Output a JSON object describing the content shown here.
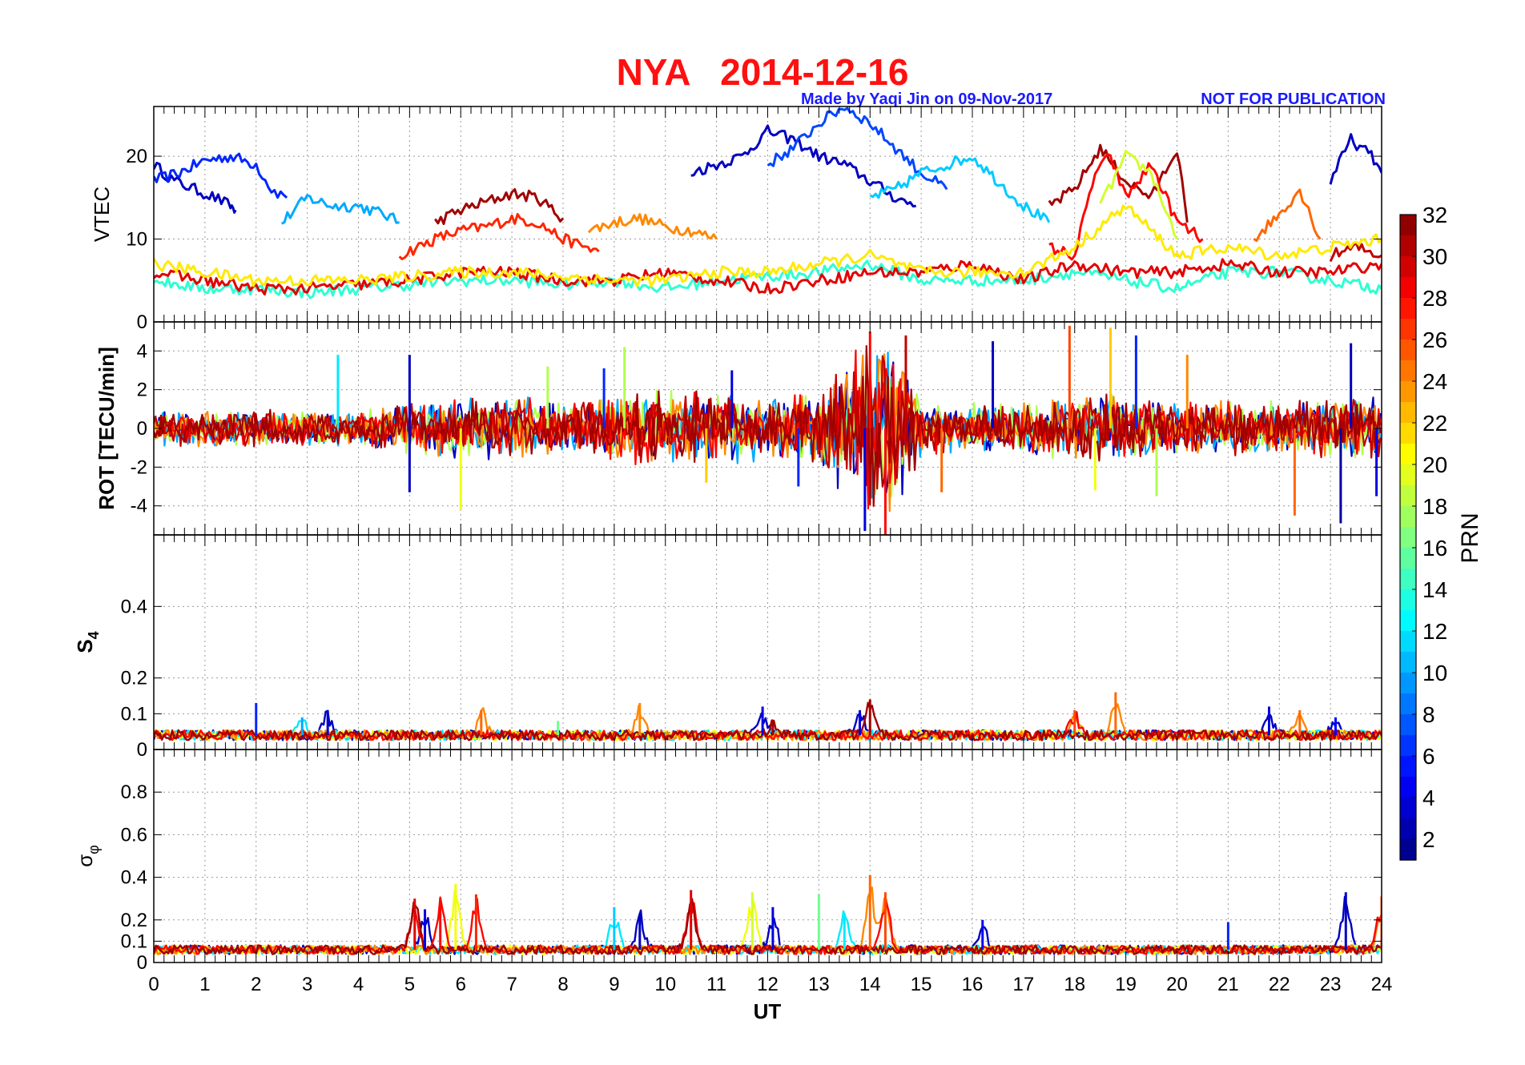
{
  "figure": {
    "title": "NYA   2014-12-16",
    "credit": "Made by Yaqi Jin on 09-Nov-2017",
    "notice": "NOT FOR PUBLICATION",
    "colors": {
      "title": "#ff1010",
      "credit": "#1a1aff",
      "grid": "#b0b0b0"
    }
  },
  "chart_data": [
    {
      "type": "line",
      "panel": "vtec",
      "ylabel": "VTEC",
      "ylim": [
        0,
        26
      ],
      "yticks": [
        0,
        10,
        20
      ],
      "xlim": [
        0,
        24
      ],
      "grid": true,
      "series": [
        {
          "prn": 3,
          "x": [
            0,
            0.4,
            0.8,
            1.2,
            1.5,
            1.6
          ],
          "y": [
            19,
            17,
            16,
            15,
            14,
            13.5
          ]
        },
        {
          "prn": 6,
          "x": [
            0,
            0.5,
            1,
            1.5,
            2.0,
            2.3,
            2.6
          ],
          "y": [
            17,
            18,
            19.5,
            20,
            19,
            16,
            15
          ]
        },
        {
          "prn": 10,
          "x": [
            2.5,
            3,
            3.5,
            4,
            4.5,
            4.8
          ],
          "y": [
            12,
            15,
            14,
            14,
            13,
            12
          ]
        },
        {
          "prn": 27,
          "x": [
            4.8,
            5.5,
            6,
            6.5,
            7,
            7.5,
            8,
            8.7
          ],
          "y": [
            8,
            10,
            11,
            11.5,
            12.5,
            12,
            10,
            8.5
          ]
        },
        {
          "prn": 31,
          "x": [
            5.5,
            6,
            6.5,
            7,
            7.5,
            8
          ],
          "y": [
            12,
            13.5,
            14.5,
            15.5,
            15,
            12.5
          ]
        },
        {
          "prn": 24,
          "x": [
            8.5,
            9,
            9.5,
            10,
            10.5,
            11
          ],
          "y": [
            11,
            12,
            12.5,
            11.5,
            11,
            10
          ]
        },
        {
          "prn": 3,
          "x": [
            10.5,
            11,
            11.5,
            12,
            12.5,
            13,
            13.5,
            14,
            14.5,
            14.9
          ],
          "y": [
            18,
            19,
            20,
            23,
            22,
            20,
            19,
            17,
            15,
            14
          ]
        },
        {
          "prn": 7,
          "x": [
            12,
            12.5,
            13,
            13.5,
            14,
            14.5,
            15,
            15.5
          ],
          "y": [
            19,
            21,
            24,
            26,
            24,
            21,
            18,
            16
          ]
        },
        {
          "prn": 11,
          "x": [
            14,
            14.5,
            15,
            15.5,
            16,
            16.5,
            17,
            17.5
          ],
          "y": [
            15,
            16,
            18,
            19,
            20,
            17,
            14,
            12
          ]
        },
        {
          "prn": 31,
          "x": [
            17.5,
            18,
            18.5,
            19,
            19.5,
            20,
            20.2
          ],
          "y": [
            14,
            16,
            21,
            17,
            15,
            21,
            12
          ]
        },
        {
          "prn": 28,
          "x": [
            17.5,
            18,
            18.4,
            18.7,
            19,
            19.5,
            20,
            20.5
          ],
          "y": [
            9,
            8,
            18,
            20,
            15,
            19,
            12,
            10
          ]
        },
        {
          "prn": 19,
          "x": [
            18.5,
            19,
            19.5,
            20
          ],
          "y": [
            14,
            20,
            18,
            10
          ]
        },
        {
          "prn": 3,
          "x": [
            23,
            23.4,
            23.8,
            24
          ],
          "y": [
            17,
            22,
            20,
            18
          ]
        },
        {
          "prn": 30,
          "x": [
            23,
            23.5,
            24
          ],
          "y": [
            8,
            9,
            8
          ]
        },
        {
          "prn": 25,
          "x": [
            21.5,
            22,
            22.4,
            22.8
          ],
          "y": [
            10,
            13,
            16,
            10
          ]
        },
        {
          "prn": 14,
          "x": [
            0,
            1,
            2,
            3,
            4,
            5,
            6,
            7,
            8,
            9,
            10,
            11,
            12,
            13,
            14,
            15,
            16,
            17,
            18,
            19,
            20,
            21,
            22,
            23,
            24
          ],
          "y": [
            5,
            4,
            4,
            3.5,
            4,
            4.5,
            5,
            5,
            4.5,
            5,
            4,
            5,
            5.5,
            6,
            7,
            5,
            5,
            5,
            6,
            5,
            4,
            6,
            6,
            5,
            4
          ]
        },
        {
          "prn": 29,
          "x": [
            0,
            1,
            2,
            3,
            4,
            5,
            6,
            7,
            8,
            9,
            10,
            11,
            12,
            13,
            14,
            15,
            16,
            17,
            18,
            19,
            20,
            21,
            22,
            23,
            24
          ],
          "y": [
            6,
            5,
            4,
            4,
            4.5,
            5,
            6,
            6,
            5,
            5,
            6,
            5,
            4,
            5,
            6,
            6,
            7,
            5,
            7,
            6,
            6,
            7,
            6,
            6,
            7
          ]
        },
        {
          "prn": 21,
          "x": [
            0,
            1,
            2,
            3,
            4,
            5,
            6,
            7,
            8,
            9,
            10,
            11,
            12,
            13,
            14,
            15,
            16,
            17,
            18,
            19,
            20,
            21,
            22,
            23,
            24
          ],
          "y": [
            7,
            6,
            5,
            5,
            5,
            5.5,
            6,
            6,
            5.5,
            5,
            5,
            6,
            6,
            7,
            8,
            6,
            6,
            6,
            9,
            14,
            8,
            9,
            8,
            9,
            10
          ]
        }
      ]
    },
    {
      "type": "line",
      "panel": "rot",
      "ylabel": "ROT [TECU/min]",
      "ylim": [
        -5.5,
        5.5
      ],
      "yticks": [
        -4,
        -2,
        0,
        2,
        4
      ],
      "xlim": [
        0,
        24
      ],
      "grid": true,
      "envelope": {
        "x": [
          0,
          2,
          4,
          5,
          6,
          7,
          8,
          9,
          10,
          11,
          12,
          13,
          13.8,
          14.2,
          14.6,
          15,
          16,
          17,
          18,
          19,
          20,
          21,
          22,
          23,
          24
        ],
        "amp": [
          1,
          1,
          1,
          1.4,
          1.6,
          1.8,
          1.4,
          2,
          2.2,
          2,
          1.8,
          2,
          4.5,
          5,
          4,
          1.4,
          1.4,
          1.4,
          1.8,
          2,
          1.4,
          1.6,
          1.4,
          1.8,
          1.6
        ]
      },
      "spikes": [
        {
          "x": 5.0,
          "y": 3.8,
          "prn": 3
        },
        {
          "x": 5.0,
          "y": -3.3,
          "prn": 3
        },
        {
          "x": 6.0,
          "y": -4.2,
          "prn": 20
        },
        {
          "x": 3.6,
          "y": 3.8,
          "prn": 12
        },
        {
          "x": 7.7,
          "y": 3.2,
          "prn": 18
        },
        {
          "x": 8.8,
          "y": 3.1,
          "prn": 6
        },
        {
          "x": 9.2,
          "y": 4.2,
          "prn": 18
        },
        {
          "x": 13.9,
          "y": -5.3,
          "prn": 4
        },
        {
          "x": 14.0,
          "y": 5.0,
          "prn": 28
        },
        {
          "x": 14.3,
          "y": -5.5,
          "prn": 28
        },
        {
          "x": 14.7,
          "y": 4.8,
          "prn": 30
        },
        {
          "x": 15.4,
          "y": -3.3,
          "prn": 25
        },
        {
          "x": 16.4,
          "y": 4.5,
          "prn": 3
        },
        {
          "x": 17.9,
          "y": 5.3,
          "prn": 26
        },
        {
          "x": 18.7,
          "y": 5.2,
          "prn": 22
        },
        {
          "x": 19.2,
          "y": 4.8,
          "prn": 6
        },
        {
          "x": 22.3,
          "y": -4.5,
          "prn": 25
        },
        {
          "x": 23.2,
          "y": -4.9,
          "prn": 2
        },
        {
          "x": 23.4,
          "y": 4.4,
          "prn": 3
        },
        {
          "x": 23.9,
          "y": -3.5,
          "prn": 4
        },
        {
          "x": 20.2,
          "y": 3.8,
          "prn": 24
        },
        {
          "x": 11.3,
          "y": 3.0,
          "prn": 4
        },
        {
          "x": 12.6,
          "y": -3.0,
          "prn": 6
        },
        {
          "x": 10.8,
          "y": -2.8,
          "prn": 22
        },
        {
          "x": 19.6,
          "y": -3.5,
          "prn": 18
        },
        {
          "x": 18.4,
          "y": -3.2,
          "prn": 20
        }
      ]
    },
    {
      "type": "line",
      "panel": "s4",
      "ylabel": "S4",
      "ylim": [
        0,
        0.6
      ],
      "yticks": [
        0,
        0.1,
        0.2,
        0.4
      ],
      "xlim": [
        0,
        24
      ],
      "grid": true,
      "baseline": 0.04,
      "bumps": [
        {
          "x": 2.0,
          "y": 0.13,
          "prn": 6
        },
        {
          "x": 2.9,
          "y": 0.09,
          "prn": 10
        },
        {
          "x": 3.4,
          "y": 0.11,
          "prn": 3
        },
        {
          "x": 6.4,
          "y": 0.11,
          "prn": 25
        },
        {
          "x": 7.9,
          "y": 0.08,
          "prn": 16
        },
        {
          "x": 9.5,
          "y": 0.13,
          "prn": 24
        },
        {
          "x": 11.9,
          "y": 0.12,
          "prn": 4
        },
        {
          "x": 12.1,
          "y": 0.08,
          "prn": 31
        },
        {
          "x": 14.0,
          "y": 0.14,
          "prn": 31
        },
        {
          "x": 13.8,
          "y": 0.11,
          "prn": 4
        },
        {
          "x": 18.0,
          "y": 0.11,
          "prn": 26
        },
        {
          "x": 18.8,
          "y": 0.16,
          "prn": 25
        },
        {
          "x": 21.8,
          "y": 0.12,
          "prn": 4
        },
        {
          "x": 22.4,
          "y": 0.11,
          "prn": 25
        },
        {
          "x": 23.1,
          "y": 0.09,
          "prn": 5
        }
      ]
    },
    {
      "type": "line",
      "panel": "sigma_phi",
      "ylabel": "σφ",
      "ylim": [
        0,
        1.0
      ],
      "yticks": [
        0,
        0.1,
        0.2,
        0.4,
        0.6,
        0.8
      ],
      "xlim": [
        0,
        24
      ],
      "grid": true,
      "baseline": 0.06,
      "bumps": [
        {
          "x": 5.1,
          "y": 0.3,
          "prn": 29
        },
        {
          "x": 5.3,
          "y": 0.25,
          "prn": 4
        },
        {
          "x": 5.6,
          "y": 0.3,
          "prn": 28
        },
        {
          "x": 5.9,
          "y": 0.37,
          "prn": 20
        },
        {
          "x": 6.3,
          "y": 0.32,
          "prn": 27
        },
        {
          "x": 9.0,
          "y": 0.26,
          "prn": 11
        },
        {
          "x": 9.5,
          "y": 0.23,
          "prn": 3
        },
        {
          "x": 10.5,
          "y": 0.34,
          "prn": 29
        },
        {
          "x": 11.7,
          "y": 0.33,
          "prn": 19
        },
        {
          "x": 12.1,
          "y": 0.26,
          "prn": 4
        },
        {
          "x": 13.0,
          "y": 0.32,
          "prn": 16
        },
        {
          "x": 13.5,
          "y": 0.23,
          "prn": 12
        },
        {
          "x": 14.0,
          "y": 0.41,
          "prn": 25
        },
        {
          "x": 14.3,
          "y": 0.33,
          "prn": 26
        },
        {
          "x": 23.3,
          "y": 0.33,
          "prn": 3
        },
        {
          "x": 24.0,
          "y": 0.31,
          "prn": 26
        },
        {
          "x": 16.2,
          "y": 0.2,
          "prn": 5
        },
        {
          "x": 21.0,
          "y": 0.19,
          "prn": 6
        }
      ]
    }
  ],
  "xaxis": {
    "label": "UT",
    "ticks": [
      "0",
      "1",
      "2",
      "3",
      "4",
      "5",
      "6",
      "7",
      "8",
      "9",
      "10",
      "11",
      "12",
      "13",
      "14",
      "15",
      "16",
      "17",
      "18",
      "19",
      "20",
      "21",
      "22",
      "23",
      "24"
    ]
  },
  "colorbar": {
    "label": "PRN",
    "colormap": "jet",
    "range": [
      1,
      32
    ],
    "ticks": [
      2,
      4,
      6,
      8,
      10,
      12,
      14,
      16,
      18,
      20,
      22,
      24,
      26,
      28,
      30,
      32
    ]
  }
}
